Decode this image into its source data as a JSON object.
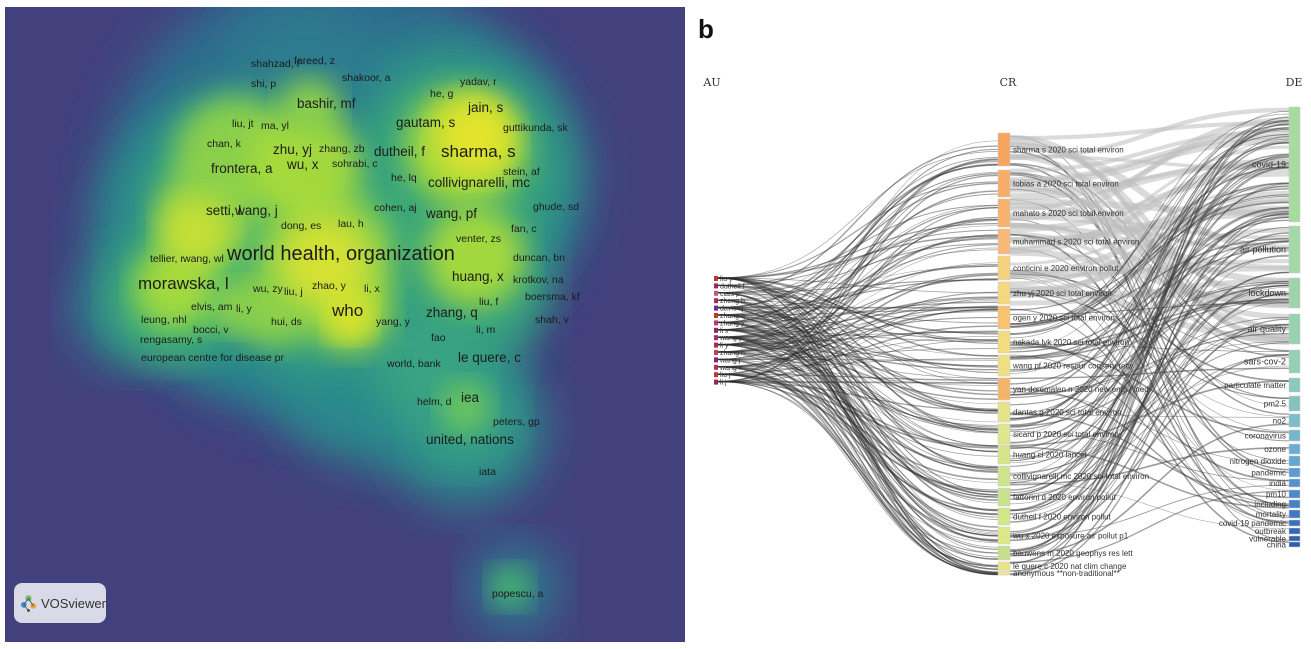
{
  "panel_a": {
    "letter": "a",
    "brand": "VOSviewer",
    "labels": [
      {
        "text": "shahzad, f",
        "size": "s"
      },
      {
        "text": "fareed, z",
        "size": "s"
      },
      {
        "text": "shi, p",
        "size": "s"
      },
      {
        "text": "shakoor, a",
        "size": "s"
      },
      {
        "text": "yadav, r",
        "size": "s"
      },
      {
        "text": "he, g",
        "size": "s"
      },
      {
        "text": "bashir, mf",
        "size": "m"
      },
      {
        "text": "jain, s",
        "size": "m"
      },
      {
        "text": "liu, jt",
        "size": "s"
      },
      {
        "text": "ma, yl",
        "size": "s"
      },
      {
        "text": "gautam, s",
        "size": "m"
      },
      {
        "text": "guttikunda, sk",
        "size": "s"
      },
      {
        "text": "chan, k",
        "size": "s"
      },
      {
        "text": "zhu, yj",
        "size": "m"
      },
      {
        "text": "zhang, zb",
        "size": "s"
      },
      {
        "text": "dutheil, f",
        "size": "m"
      },
      {
        "text": "sharma, s",
        "size": "l"
      },
      {
        "text": "frontera, a",
        "size": "m"
      },
      {
        "text": "stein, af",
        "size": "s"
      },
      {
        "text": "wu, x",
        "size": "m"
      },
      {
        "text": "sohrabi, c",
        "size": "s"
      },
      {
        "text": "he, lq",
        "size": "s"
      },
      {
        "text": "collivignarelli, mc",
        "size": "m"
      },
      {
        "text": "setti, l",
        "size": "m"
      },
      {
        "text": "wang, j",
        "size": "m"
      },
      {
        "text": "cohen, aj",
        "size": "s"
      },
      {
        "text": "wang, pf",
        "size": "m"
      },
      {
        "text": "ghude, sd",
        "size": "s"
      },
      {
        "text": "dong, es",
        "size": "s"
      },
      {
        "text": "lau, h",
        "size": "s"
      },
      {
        "text": "fan, c",
        "size": "s"
      },
      {
        "text": "venter, zs",
        "size": "s"
      },
      {
        "text": "tellier, r",
        "size": "s"
      },
      {
        "text": "wang, wl",
        "size": "s"
      },
      {
        "text": "world health, organization",
        "size": "xl"
      },
      {
        "text": "duncan, bn",
        "size": "s"
      },
      {
        "text": "morawska, l",
        "size": "l"
      },
      {
        "text": "huang, x",
        "size": "m"
      },
      {
        "text": "krotkov, na",
        "size": "s"
      },
      {
        "text": "wu, zy",
        "size": "s"
      },
      {
        "text": "liu, j",
        "size": "s"
      },
      {
        "text": "zhao, y",
        "size": "s"
      },
      {
        "text": "li, x",
        "size": "s"
      },
      {
        "text": "liu, f",
        "size": "s"
      },
      {
        "text": "boersma, kf",
        "size": "s"
      },
      {
        "text": "elvis, am",
        "size": "s"
      },
      {
        "text": "li, y",
        "size": "s"
      },
      {
        "text": "who",
        "size": "l"
      },
      {
        "text": "zhang, q",
        "size": "m"
      },
      {
        "text": "leung, nhl",
        "size": "s"
      },
      {
        "text": "shah, v",
        "size": "s"
      },
      {
        "text": "bocci, v",
        "size": "s"
      },
      {
        "text": "hui, ds",
        "size": "s"
      },
      {
        "text": "yang, y",
        "size": "s"
      },
      {
        "text": "li, m",
        "size": "s"
      },
      {
        "text": "fao",
        "size": "s"
      },
      {
        "text": "rengasamy, s",
        "size": "s"
      },
      {
        "text": "le quere, c",
        "size": "m"
      },
      {
        "text": "european centre for disease pr",
        "size": "s"
      },
      {
        "text": "world, bank",
        "size": "s"
      },
      {
        "text": "helm, d",
        "size": "s"
      },
      {
        "text": "iea",
        "size": "m"
      },
      {
        "text": "peters, gp",
        "size": "s"
      },
      {
        "text": "united, nations",
        "size": "m"
      },
      {
        "text": "iata",
        "size": "s"
      },
      {
        "text": "popescu, a",
        "size": "s"
      }
    ]
  },
  "panel_b": {
    "letter": "b",
    "columns": [
      "AU",
      "CR",
      "DE"
    ],
    "au_nodes": [
      "liu y",
      "dutheil f",
      "ciais p",
      "zheng b",
      "davis sj",
      "zhang q",
      "zhang y",
      "li x",
      "wang y",
      "li y",
      "zhang h",
      "wang j",
      "wang x",
      "liu j",
      "li j"
    ],
    "cr_nodes": [
      {
        "label": "sharma s 2020 sci total environ",
        "color": "#f5a55e"
      },
      {
        "label": "tobias a 2020 sci total environ",
        "color": "#f7ad6a"
      },
      {
        "label": "mahato s 2020 sci total environ",
        "color": "#f7b26e"
      },
      {
        "label": "muhammad s 2020 sci total environ",
        "color": "#f7b878"
      },
      {
        "label": "conticini e 2020 environ pollut",
        "color": "#f5d27e"
      },
      {
        "label": "zhu yj 2020 sci total environ",
        "color": "#f5d880"
      },
      {
        "label": "ogen y 2020 sci total environ",
        "color": "#f7c36e"
      },
      {
        "label": "nakada lyk 2020 sci total environ",
        "color": "#f3dc80"
      },
      {
        "label": "wang pf 2020 resour conserv recy",
        "color": "#efe084"
      },
      {
        "label": "yan doremalen n 2020 new engl j med",
        "color": "#f5b46a"
      },
      {
        "label": "dantas g 2020 sci total environ",
        "color": "#e6e48a"
      },
      {
        "label": "sicard p 2020 sci total environ",
        "color": "#dfe68c"
      },
      {
        "label": "huang cl 2020 lancet",
        "color": "#d8e48c"
      },
      {
        "label": "collivignarelli mc 2020 sci total environ",
        "color": "#cfe48e"
      },
      {
        "label": "fattorini d 2020 environ pollut",
        "color": "#c8e28e"
      },
      {
        "label": "dutheil f 2020 environ pollut",
        "color": "#d2e68a"
      },
      {
        "label": "wu x 2020 exposure air pollut p1",
        "color": "#dde88a"
      },
      {
        "label": "bauwens m 2020 geophys res lett",
        "color": "#c4e08c"
      },
      {
        "label": "le quere c 2020 nat clim change",
        "color": "#e8e48c"
      },
      {
        "label": "anonymous **non-traditional**",
        "color": "#f0e690"
      }
    ],
    "de_nodes": [
      {
        "label": "covid-19",
        "color": "#a8dba0"
      },
      {
        "label": "air pollution",
        "color": "#a4d8a6"
      },
      {
        "label": "lockdown",
        "color": "#9fd4aa"
      },
      {
        "label": "air quality",
        "color": "#99d2b0"
      },
      {
        "label": "sars-cov-2",
        "color": "#94cfb6"
      },
      {
        "label": "particulate matter",
        "color": "#8cc9bc"
      },
      {
        "label": "pm2.5",
        "color": "#84c3c2"
      },
      {
        "label": "no2",
        "color": "#7dbdc8"
      },
      {
        "label": "coronavirus",
        "color": "#76b6cc"
      },
      {
        "label": "ozone",
        "color": "#6daed0"
      },
      {
        "label": "nitrogen dioxide",
        "color": "#62a6d2"
      },
      {
        "label": "pandemic",
        "color": "#5a9cd2"
      },
      {
        "label": "india",
        "color": "#5292d0"
      },
      {
        "label": "pm10",
        "color": "#4b88cc"
      },
      {
        "label": "including",
        "color": "#4580c8"
      },
      {
        "label": "mortality",
        "color": "#3f78c4"
      },
      {
        "label": "covid-19 pandemic",
        "color": "#3a70be"
      },
      {
        "label": "outbreak",
        "color": "#3568b8"
      },
      {
        "label": "vulnerable",
        "color": "#3262b2"
      },
      {
        "label": "china",
        "color": "#2f5cac"
      }
    ]
  }
}
